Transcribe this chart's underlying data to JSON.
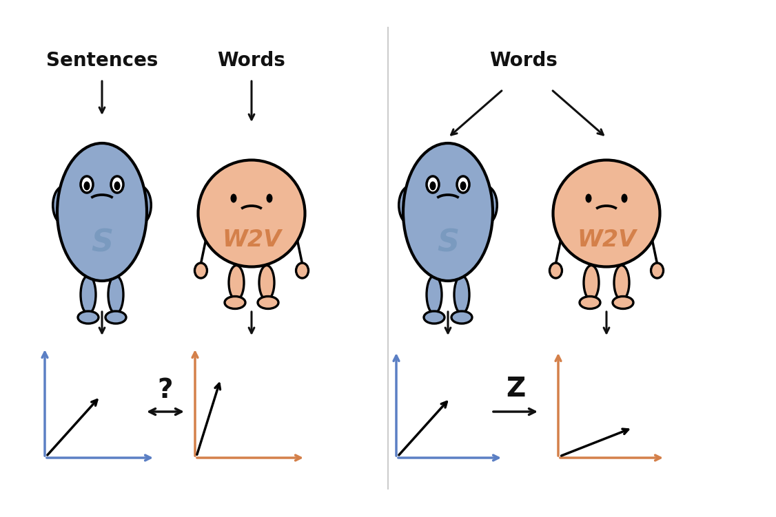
{
  "bg_color": "#ffffff",
  "blue_body": "#8fa8cc",
  "blue_label": "#7a9abf",
  "orange_body": "#f0b896",
  "orange_label": "#d4804a",
  "axis_blue": "#5b7fc4",
  "axis_orange": "#d4804a",
  "text_color": "#111111",
  "left_sentences_label": "Sentences",
  "left_words_label": "Words",
  "right_words_label": "Words",
  "left_s_label": "S",
  "left_w2v_label": "W2V",
  "right_s_label": "S",
  "right_w2v_label": "W2V",
  "question_mark": "?",
  "z_label": "Z",
  "font_size_label": 20,
  "font_size_qz": 24
}
